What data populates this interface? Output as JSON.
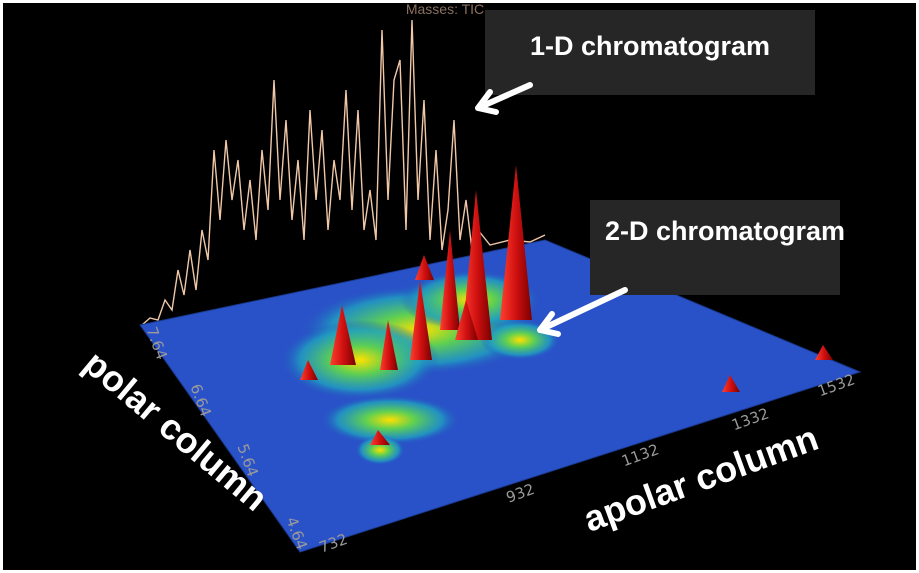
{
  "plot": {
    "title": "Masses: TIC",
    "callouts": [
      "1-D chromatogram",
      "2-D chromatogram"
    ],
    "axes": {
      "polar": {
        "label": "polar column",
        "ticks": [
          "7.64",
          "6.64",
          "5.64",
          "4.64"
        ]
      },
      "apolar": {
        "label": "apolar column",
        "ticks": [
          "732",
          "932",
          "1132",
          "1332",
          "1532"
        ]
      }
    }
  }
}
